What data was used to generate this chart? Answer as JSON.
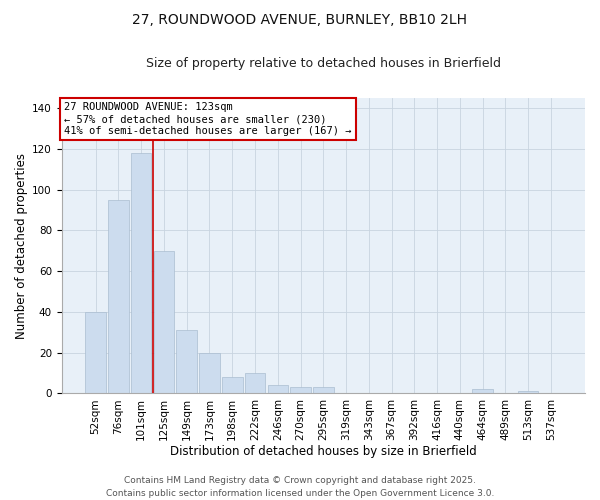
{
  "title": "27, ROUNDWOOD AVENUE, BURNLEY, BB10 2LH",
  "subtitle": "Size of property relative to detached houses in Brierfield",
  "xlabel": "Distribution of detached houses by size in Brierfield",
  "ylabel": "Number of detached properties",
  "categories": [
    "52sqm",
    "76sqm",
    "101sqm",
    "125sqm",
    "149sqm",
    "173sqm",
    "198sqm",
    "222sqm",
    "246sqm",
    "270sqm",
    "295sqm",
    "319sqm",
    "343sqm",
    "367sqm",
    "392sqm",
    "416sqm",
    "440sqm",
    "464sqm",
    "489sqm",
    "513sqm",
    "537sqm"
  ],
  "values": [
    40,
    95,
    118,
    70,
    31,
    20,
    8,
    10,
    4,
    3,
    3,
    0,
    0,
    0,
    0,
    0,
    0,
    2,
    0,
    1,
    0
  ],
  "bar_color": "#ccdcee",
  "bar_edge_color": "#aabdd0",
  "vline_color": "#cc0000",
  "vline_pos": 2.5,
  "annotation_lines": [
    "27 ROUNDWOOD AVENUE: 123sqm",
    "← 57% of detached houses are smaller (230)",
    "41% of semi-detached houses are larger (167) →"
  ],
  "annotation_box_edgecolor": "#cc0000",
  "ylim": [
    0,
    145
  ],
  "yticks": [
    0,
    20,
    40,
    60,
    80,
    100,
    120,
    140
  ],
  "footer_lines": [
    "Contains HM Land Registry data © Crown copyright and database right 2025.",
    "Contains public sector information licensed under the Open Government Licence 3.0."
  ],
  "background_color": "#ffffff",
  "plot_bg_color": "#e8f0f8",
  "grid_color": "#c8d4e0",
  "title_fontsize": 10,
  "subtitle_fontsize": 9,
  "axis_label_fontsize": 8.5,
  "tick_fontsize": 7.5,
  "annotation_fontsize": 7.5,
  "footer_fontsize": 6.5
}
